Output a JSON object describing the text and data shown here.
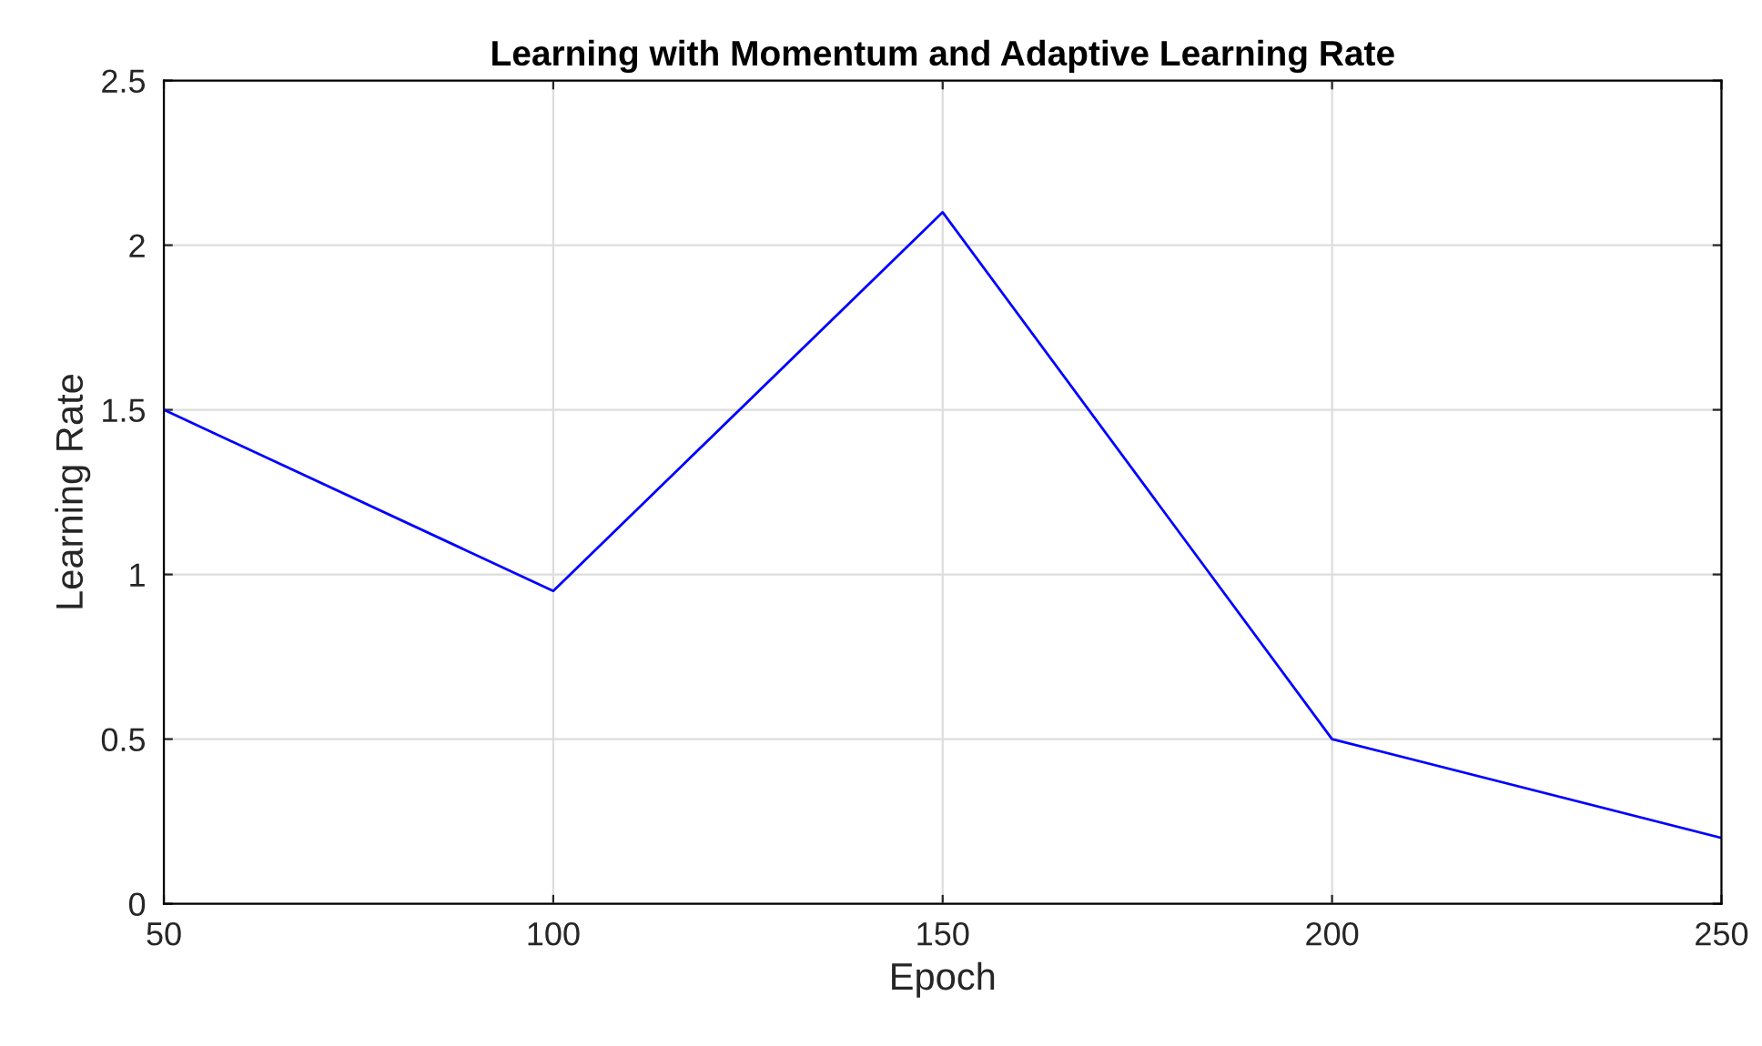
{
  "chart_data": {
    "type": "line",
    "title": "Learning with Momentum and Adaptive Learning Rate",
    "xlabel": "Epoch",
    "ylabel": "Learning Rate",
    "x": [
      50,
      100,
      150,
      200,
      250
    ],
    "series": [
      {
        "color": "#0000ff",
        "values": [
          1.5,
          0.95,
          2.1,
          0.5,
          0.2
        ]
      }
    ],
    "xlim": [
      50,
      250
    ],
    "xticks": [
      50,
      100,
      150,
      200,
      250
    ],
    "ylim": [
      0,
      2.5
    ],
    "yticks": [
      0,
      0.5,
      1,
      1.5,
      2,
      2.5
    ],
    "grid": true,
    "marker": "none",
    "line_style": "solid"
  }
}
